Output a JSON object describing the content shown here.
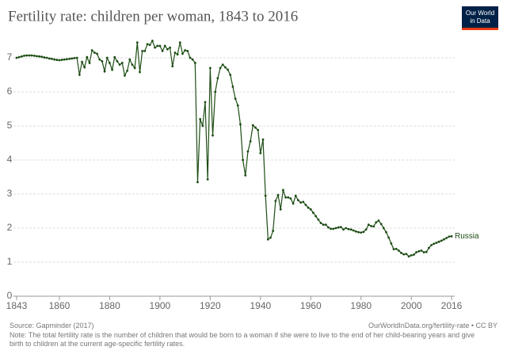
{
  "chart_data": {
    "type": "line",
    "title": "Fertility rate: children per woman, 1843 to 2016",
    "logo": [
      "Our World",
      "in Data"
    ],
    "source": "Source: Gapminder (2017)",
    "url": "OurWorldInData.org/fertility-rate • CC BY",
    "note": "Note: The total fertility rate is the number of children that would be born to a woman if she were to live to the end of her child-bearing years and give birth to children at the current age-specific fertility rates.",
    "x": [
      1843,
      1844,
      1845,
      1846,
      1847,
      1848,
      1849,
      1850,
      1851,
      1852,
      1853,
      1854,
      1855,
      1856,
      1857,
      1858,
      1859,
      1860,
      1861,
      1862,
      1863,
      1864,
      1865,
      1866,
      1867,
      1868,
      1869,
      1870,
      1871,
      1872,
      1873,
      1874,
      1875,
      1876,
      1877,
      1878,
      1879,
      1880,
      1881,
      1882,
      1883,
      1884,
      1885,
      1886,
      1887,
      1888,
      1889,
      1890,
      1891,
      1892,
      1893,
      1894,
      1895,
      1896,
      1897,
      1898,
      1899,
      1900,
      1901,
      1902,
      1903,
      1904,
      1905,
      1906,
      1907,
      1908,
      1909,
      1910,
      1911,
      1912,
      1913,
      1914,
      1915,
      1916,
      1917,
      1918,
      1919,
      1920,
      1921,
      1922,
      1923,
      1924,
      1925,
      1926,
      1927,
      1928,
      1929,
      1930,
      1931,
      1932,
      1933,
      1934,
      1935,
      1936,
      1937,
      1938,
      1939,
      1940,
      1941,
      1942,
      1943,
      1944,
      1945,
      1946,
      1947,
      1948,
      1949,
      1950,
      1951,
      1952,
      1953,
      1954,
      1955,
      1956,
      1957,
      1958,
      1959,
      1960,
      1961,
      1962,
      1963,
      1964,
      1965,
      1966,
      1967,
      1968,
      1969,
      1970,
      1971,
      1972,
      1973,
      1974,
      1975,
      1976,
      1977,
      1978,
      1979,
      1980,
      1981,
      1982,
      1983,
      1984,
      1985,
      1986,
      1987,
      1988,
      1989,
      1990,
      1991,
      1992,
      1993,
      1994,
      1995,
      1996,
      1997,
      1998,
      1999,
      2000,
      2001,
      2002,
      2003,
      2004,
      2005,
      2006,
      2007,
      2008,
      2009,
      2010,
      2011,
      2012,
      2013,
      2014,
      2015,
      2016
    ],
    "series": [
      {
        "name": "Russia",
        "color": "#1d4d14",
        "values": [
          7.0,
          7.02,
          7.04,
          7.06,
          7.07,
          7.07,
          7.07,
          7.06,
          7.05,
          7.04,
          7.03,
          7.01,
          7.0,
          6.98,
          6.97,
          6.95,
          6.94,
          6.93,
          6.94,
          6.95,
          6.96,
          6.97,
          6.98,
          6.99,
          7.0,
          6.5,
          6.88,
          6.72,
          7.02,
          6.85,
          7.22,
          7.15,
          7.12,
          6.95,
          6.9,
          6.6,
          7.0,
          6.85,
          6.65,
          7.02,
          6.9,
          6.8,
          6.85,
          6.48,
          6.62,
          6.95,
          6.8,
          6.7,
          7.45,
          6.58,
          7.2,
          7.2,
          7.4,
          7.38,
          7.5,
          7.3,
          7.35,
          7.35,
          7.2,
          7.35,
          7.25,
          7.3,
          6.75,
          7.15,
          7.1,
          7.45,
          7.12,
          7.22,
          7.2,
          7.0,
          6.95,
          6.85,
          3.35,
          5.2,
          5.0,
          5.7,
          3.43,
          6.7,
          4.72,
          6.0,
          6.4,
          6.7,
          6.8,
          6.72,
          6.65,
          6.5,
          6.15,
          5.8,
          5.6,
          5.05,
          4.0,
          3.55,
          4.25,
          4.55,
          5.02,
          4.95,
          4.88,
          4.2,
          4.6,
          2.95,
          1.67,
          1.72,
          1.92,
          2.8,
          2.97,
          2.55,
          3.12,
          2.9,
          2.9,
          2.87,
          2.72,
          2.95,
          2.82,
          2.75,
          2.77,
          2.68,
          2.6,
          2.55,
          2.45,
          2.35,
          2.25,
          2.15,
          2.1,
          2.1,
          2.02,
          1.98,
          1.98,
          2.0,
          2.02,
          2.03,
          1.96,
          2.0,
          1.97,
          1.96,
          1.93,
          1.9,
          1.88,
          1.87,
          1.89,
          1.96,
          2.1,
          2.06,
          2.05,
          2.17,
          2.22,
          2.12,
          2.0,
          1.88,
          1.72,
          1.55,
          1.38,
          1.39,
          1.34,
          1.27,
          1.23,
          1.24,
          1.17,
          1.2,
          1.22,
          1.29,
          1.32,
          1.34,
          1.29,
          1.3,
          1.42,
          1.5,
          1.54,
          1.57,
          1.6,
          1.63,
          1.67,
          1.71,
          1.75,
          1.76
        ]
      }
    ],
    "xlim": [
      1843,
      2016
    ],
    "xticks": [
      1843,
      1860,
      1880,
      1900,
      1920,
      1940,
      1960,
      1980,
      2000,
      2016
    ],
    "ylim": [
      0,
      7.6
    ],
    "yticks": [
      0,
      1,
      2,
      3,
      4,
      5,
      6,
      7
    ],
    "grid": true
  }
}
